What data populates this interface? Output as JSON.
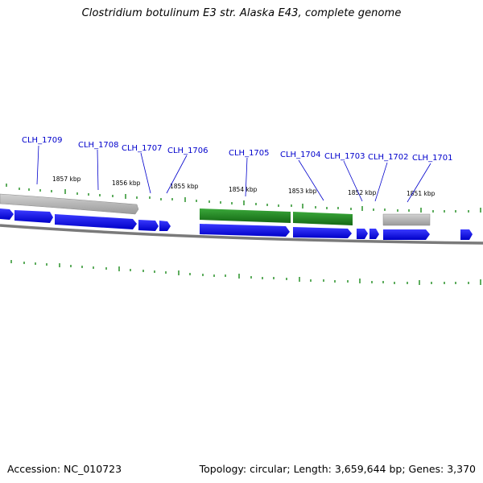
{
  "title": "Clostridium botulinum E3 str. Alaska E43, complete genome",
  "footer": {
    "accession": "Accession: NC_010723",
    "summary": "Topology: circular; Length: 3,659,644 bp; Genes: 3,370"
  },
  "colors": {
    "forward_gene": "#0000ee",
    "reverse_gene": "#1f8a1f",
    "rna_or_pseudo": "#b8b8b8",
    "label": "#0000cc",
    "tick": "#1a8a1a",
    "backbone": "#808080"
  },
  "gene_labels": [
    "CLH_1709",
    "CLH_1708",
    "CLH_1707",
    "CLH_1706",
    "CLH_1705",
    "CLH_1704",
    "CLH_1703",
    "CLH_1702",
    "CLH_1701"
  ],
  "kbp_labels": [
    "1857 kbp",
    "1856 kbp",
    "1855 kbp",
    "1854 kbp",
    "1853 kbp",
    "1852 kbp",
    "1851 kbp"
  ]
}
